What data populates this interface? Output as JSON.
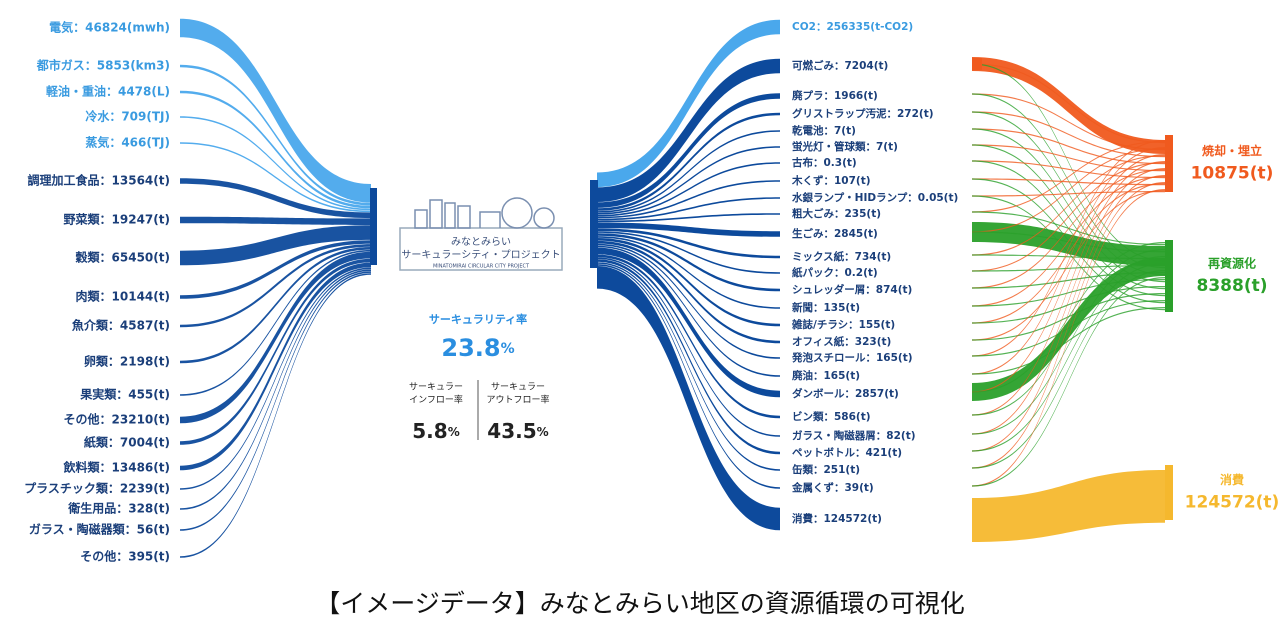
{
  "left_items": [
    "電気：46824(mwh)",
    "都市ガス：5853(km3)",
    "軽油・重油：4478(L)",
    "冷水：709(TJ)",
    "蒸気：466(TJ)",
    "調理加工食品：13564(t)",
    "野菜類：19247(t)",
    "穀類：65450(t)",
    "肉類：10144(t)",
    "魚介類：4587(t)",
    "卵類：2198(t)",
    "果実類：455(t)",
    "その他：23210(t)",
    "紙類：7004(t)",
    "飲料類：13486(t)",
    "プラスチック類：2239(t)",
    "衛生用品：328(t)",
    "ガラス・陶磁器類：56(t)",
    "その他：395(t)"
  ],
  "center": {
    "logo_title": "みなとみらい",
    "logo_subtitle": "サーキュラーシティ・プロジェクト",
    "logo_en": "MINATOMIRAI CIRCULAR CITY PROJECT",
    "rate_label": "サーキュラリティ率",
    "rate_value": "23.8",
    "rate_unit": "%",
    "inflow_label": [
      "サーキュラー",
      "インフロー率"
    ],
    "inflow_value": "5.8",
    "inflow_unit": "%",
    "outflow_label": [
      "サーキュラー",
      "アウトフロー率"
    ],
    "outflow_value": "43.5",
    "outflow_unit": "%"
  },
  "right_items": [
    "CO2：256335(t-CO2)",
    "可燃ごみ：7204(t)",
    "廃プラ：1966(t)",
    "グリストラップ汚泥：272(t)",
    "乾電池：7(t)",
    "蛍光灯・管球類：7(t)",
    "古布：0.3(t)",
    "木くず：107(t)",
    "水銀ランプ・HIDランプ：0.05(t)",
    "粗大ごみ：235(t)",
    "生ごみ：2845(t)",
    "ミックス紙：734(t)",
    "紙パック：0.2(t)",
    "シュレッダー屑：874(t)",
    "新聞：135(t)",
    "雑誌/チラシ：155(t)",
    "オフィス紙：323(t)",
    "発泡スチロール：165(t)",
    "廃油：165(t)",
    "ダンボール：2857(t)",
    "ビン類：586(t)",
    "ガラス・陶磁器屑：82(t)",
    "ペットボトル：421(t)",
    "缶類：251(t)",
    "金属くず：39(t)",
    "消費：124572(t)"
  ],
  "destinations": [
    {
      "label": "焼却・埋立",
      "value": "10875(t)"
    },
    {
      "label": "再資源化",
      "value": "8388(t)"
    },
    {
      "label": "消費",
      "value": "124572(t)"
    }
  ],
  "caption": "【イメージデータ】みなとみらい地区の資源循環の可視化"
}
